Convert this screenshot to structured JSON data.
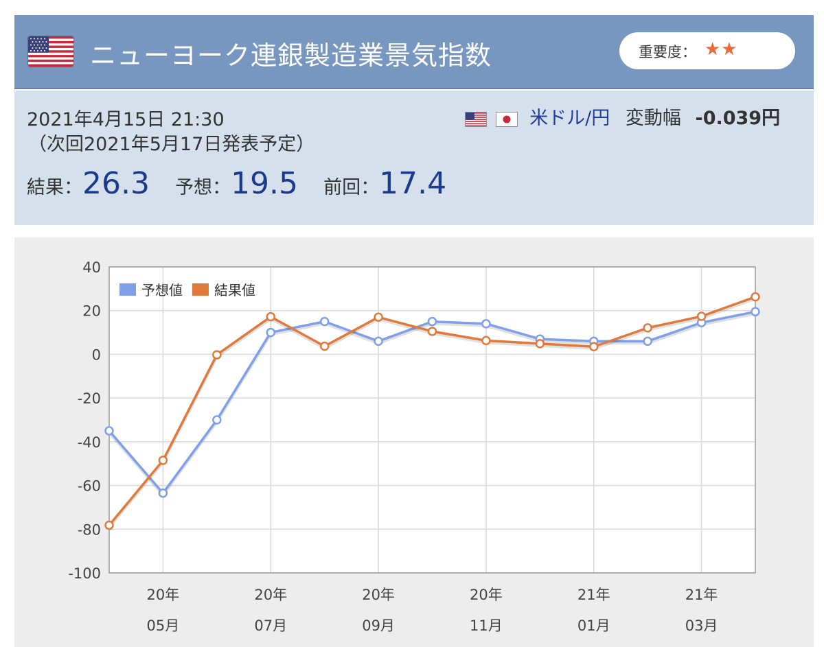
{
  "header": {
    "flag": "us-flag-icon",
    "title": "ニューヨーク連銀製造業景気指数",
    "importance_label": "重要度：",
    "importance_stars": "★★"
  },
  "release": {
    "datetime": "2021年4月15日 21:30",
    "next": "（次回2021年5月17日発表予定）"
  },
  "currency": {
    "pair": "米ドル/円",
    "change_label": "変動幅",
    "change_value": "-0.039円"
  },
  "values": {
    "result_label": "結果：",
    "result": "26.3",
    "forecast_label": "予想：",
    "forecast": "19.5",
    "previous_label": "前回：",
    "previous": "17.4"
  },
  "colors": {
    "forecast": "#7f9fe8",
    "result": "#e07a3c",
    "header_bg": "#7797c0",
    "info_bg": "#d6e0ec",
    "value_text": "#1a3a8f"
  },
  "chart_data": {
    "type": "line",
    "x": [
      "20-04",
      "20-05",
      "20-06",
      "20-07",
      "20-08",
      "20-09",
      "20-10",
      "20-11",
      "20-12",
      "21-01",
      "21-02",
      "21-03",
      "21-04"
    ],
    "x_tick_labels": [
      {
        "index": 1,
        "line1": "20年",
        "line2": "05月"
      },
      {
        "index": 3,
        "line1": "20年",
        "line2": "07月"
      },
      {
        "index": 5,
        "line1": "20年",
        "line2": "09月"
      },
      {
        "index": 7,
        "line1": "20年",
        "line2": "11月"
      },
      {
        "index": 9,
        "line1": "21年",
        "line2": "01月"
      },
      {
        "index": 11,
        "line1": "21年",
        "line2": "03月"
      }
    ],
    "series": [
      {
        "name": "予想値",
        "values": [
          -35,
          -63.5,
          -30,
          10,
          15,
          6,
          15,
          14,
          7,
          6,
          6,
          14.5,
          19.5
        ]
      },
      {
        "name": "結果値",
        "values": [
          -78.2,
          -48.5,
          -0.2,
          17.2,
          3.7,
          17,
          10.5,
          6.3,
          4.9,
          3.5,
          12.1,
          17.4,
          26.3
        ]
      }
    ],
    "ylim": [
      -100,
      40
    ],
    "y_ticks": [
      "40",
      "20",
      "0",
      "-20",
      "-40",
      "-60",
      "-80",
      "-100"
    ],
    "grid": true,
    "legend_position": "top-left"
  }
}
